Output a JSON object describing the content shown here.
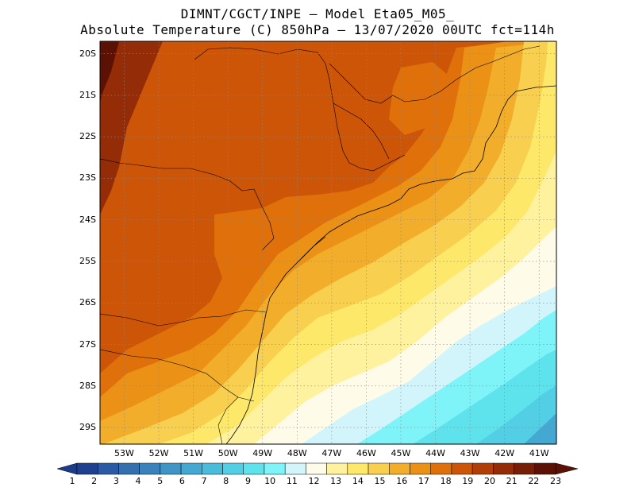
{
  "header": {
    "line1": "DIMNT/CGCT/INPE –  Model Eta05_M05_",
    "line2": "Absolute Temperature (C) 850hPa –  13/07/2020 00UTC fct=114h"
  },
  "map": {
    "lat_labels": [
      "20S",
      "21S",
      "22S",
      "23S",
      "24S",
      "25S",
      "26S",
      "27S",
      "28S",
      "29S"
    ],
    "lon_labels": [
      "53W",
      "52W",
      "51W",
      "50W",
      "49W",
      "48W",
      "47W",
      "46W",
      "45W",
      "44W",
      "43W",
      "42W",
      "41W"
    ],
    "lon_range": [
      -53.7,
      -40.5
    ],
    "lat_range": [
      -29.4,
      -19.7
    ]
  },
  "colorbar": {
    "labels": [
      "1",
      "2",
      "3",
      "4",
      "5",
      "6",
      "7",
      "8",
      "9",
      "10",
      "11",
      "12",
      "13",
      "14",
      "15",
      "16",
      "17",
      "18",
      "19",
      "20",
      "21",
      "22",
      "23"
    ],
    "colors": [
      "#1f3f8f",
      "#2a5aa5",
      "#3470b0",
      "#3a82bb",
      "#3e95c6",
      "#43a8d2",
      "#49bcdc",
      "#52cfe4",
      "#5ee3ec",
      "#7ff4f8",
      "#d2f5fb",
      "#fffbe9",
      "#fff29e",
      "#fde86a",
      "#f8cf4e",
      "#f2ae2b",
      "#eb9216",
      "#e0700a",
      "#cd5508",
      "#b23e07",
      "#932c07",
      "#761e06",
      "#5b1205"
    ],
    "end_low": "#1b3b8b",
    "end_high": "#5b1205"
  }
}
